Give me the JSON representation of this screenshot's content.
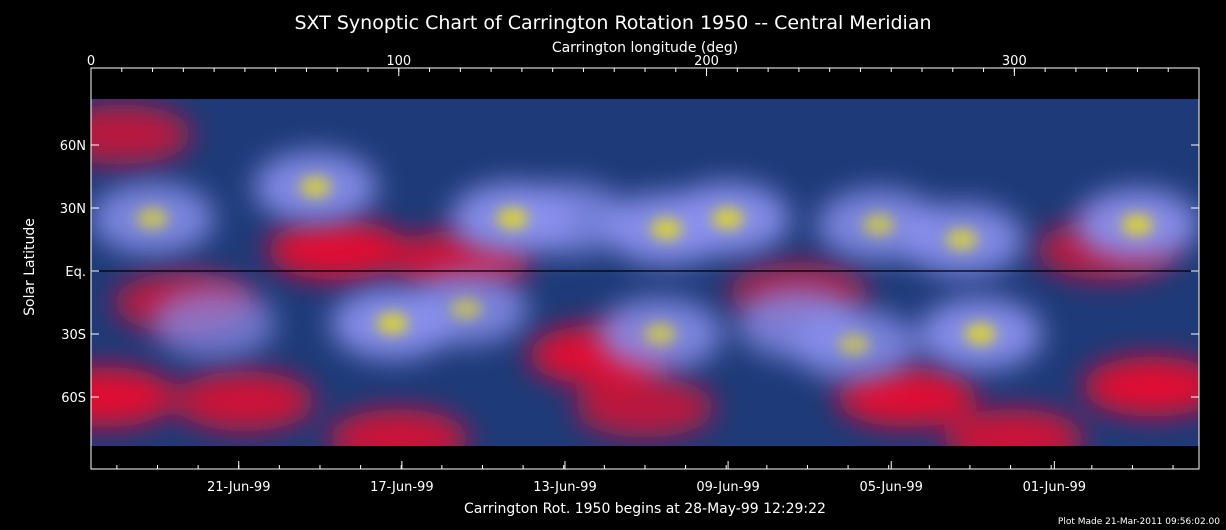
{
  "chart_data": {
    "type": "heatmap",
    "title": "SXT Synoptic Chart of Carrington Rotation 1950 -- Central Meridian",
    "top_axis_label": "Carrington longitude (deg)",
    "top_ticks": [
      {
        "value": 0,
        "label": "0"
      },
      {
        "value": 100,
        "label": "100"
      },
      {
        "value": 200,
        "label": "200"
      },
      {
        "value": 300,
        "label": "300"
      }
    ],
    "xlim": [
      0,
      360
    ],
    "ylabel": "Solar Latitude",
    "ylim": [
      -90,
      90
    ],
    "y_ticks": [
      {
        "value": 60,
        "label": "60N"
      },
      {
        "value": 30,
        "label": "30N"
      },
      {
        "value": 0,
        "label": "Eq."
      },
      {
        "value": -30,
        "label": "30S"
      },
      {
        "value": -60,
        "label": "60S"
      }
    ],
    "date_ticks": [
      {
        "value": 48,
        "label": "21-Jun-99"
      },
      {
        "value": 101,
        "label": "17-Jun-99"
      },
      {
        "value": 154,
        "label": "13-Jun-99"
      },
      {
        "value": 207,
        "label": "09-Jun-99"
      },
      {
        "value": 260,
        "label": "05-Jun-99"
      },
      {
        "value": 313,
        "label": "01-Jun-99"
      }
    ],
    "bottom_caption": "Carrington Rot. 1950 begins at 28-May-99 12:29:22",
    "plot_note": "Plot Made 21-Mar-2011 09:56:02.00",
    "equator_line": true,
    "colors": {
      "background": "#000000",
      "quiet_sun": "#1e3a78",
      "coronal_hole": "#e01030",
      "active_region": "#8a90ee",
      "bright_core": "#d8d040",
      "axes": "#ffffff"
    },
    "bright_regions": [
      {
        "lon": 20,
        "lat": 25,
        "intensity": 0.8
      },
      {
        "lon": 73,
        "lat": 40,
        "intensity": 0.9
      },
      {
        "lon": 137,
        "lat": 25,
        "intensity": 1.0
      },
      {
        "lon": 155,
        "lat": 25,
        "intensity": 0.6
      },
      {
        "lon": 187,
        "lat": 20,
        "intensity": 1.0
      },
      {
        "lon": 207,
        "lat": 25,
        "intensity": 1.0
      },
      {
        "lon": 256,
        "lat": 22,
        "intensity": 0.8
      },
      {
        "lon": 283,
        "lat": 15,
        "intensity": 0.9
      },
      {
        "lon": 340,
        "lat": 22,
        "intensity": 1.0
      },
      {
        "lon": 98,
        "lat": -25,
        "intensity": 1.0
      },
      {
        "lon": 122,
        "lat": -18,
        "intensity": 0.7
      },
      {
        "lon": 185,
        "lat": -30,
        "intensity": 0.8
      },
      {
        "lon": 230,
        "lat": -25,
        "intensity": 0.6
      },
      {
        "lon": 248,
        "lat": -35,
        "intensity": 0.7
      },
      {
        "lon": 289,
        "lat": -30,
        "intensity": 1.0
      },
      {
        "lon": 40,
        "lat": -25,
        "intensity": 0.4
      }
    ],
    "coronal_holes": [
      {
        "lon": 10,
        "lat": 65,
        "intensity": 0.8
      },
      {
        "lon": 80,
        "lat": 10,
        "intensity": 1.0
      },
      {
        "lon": 120,
        "lat": 5,
        "intensity": 0.9
      },
      {
        "lon": 165,
        "lat": -40,
        "intensity": 1.0
      },
      {
        "lon": 30,
        "lat": -15,
        "intensity": 0.8
      },
      {
        "lon": 5,
        "lat": -60,
        "intensity": 1.0
      },
      {
        "lon": 50,
        "lat": -62,
        "intensity": 0.9
      },
      {
        "lon": 180,
        "lat": -65,
        "intensity": 0.8
      },
      {
        "lon": 265,
        "lat": -60,
        "intensity": 1.0
      },
      {
        "lon": 345,
        "lat": -55,
        "intensity": 1.0
      },
      {
        "lon": 330,
        "lat": 10,
        "intensity": 0.8
      },
      {
        "lon": 230,
        "lat": -10,
        "intensity": 0.7
      },
      {
        "lon": 100,
        "lat": -80,
        "intensity": 0.9
      },
      {
        "lon": 300,
        "lat": -80,
        "intensity": 0.9
      }
    ]
  }
}
